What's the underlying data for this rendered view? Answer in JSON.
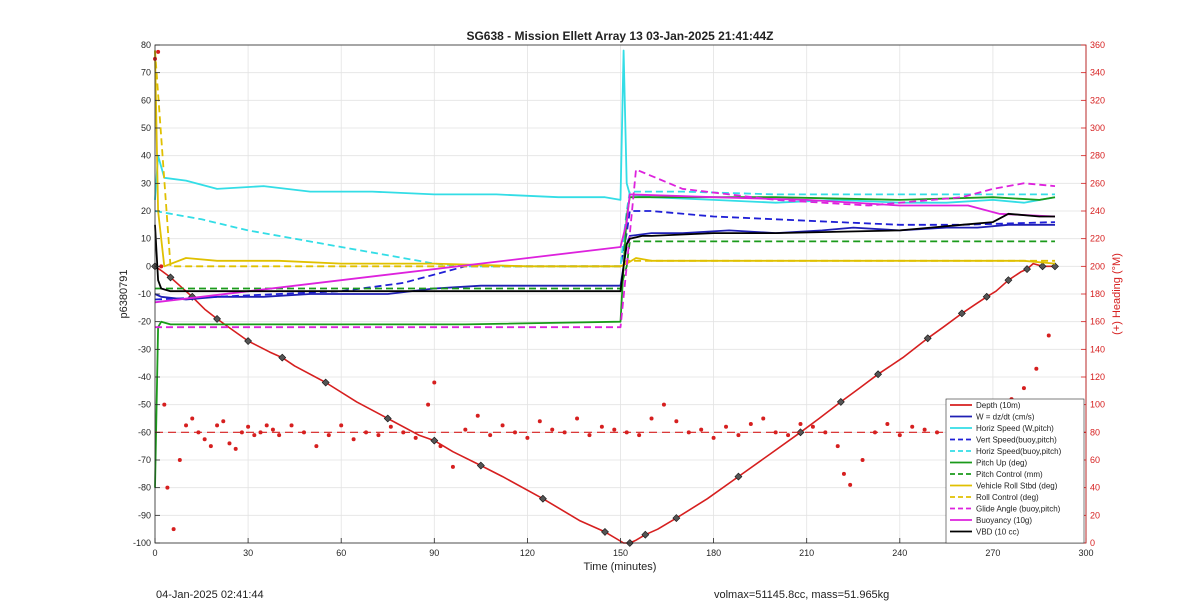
{
  "chart_data": {
    "type": "line",
    "title": "SG638 - Mission Ellett Array 13 03-Jan-2025 21:41:44Z",
    "xlabel": "Time (minutes)",
    "ylabel": "p6380791",
    "y2label": "(+) Heading (°M)",
    "xlim": [
      0,
      300
    ],
    "ylim": [
      -100,
      80
    ],
    "y2lim": [
      0,
      360
    ],
    "xticks": [
      0,
      30,
      60,
      90,
      120,
      150,
      180,
      210,
      240,
      270,
      300
    ],
    "yticks": [
      -100,
      -90,
      -80,
      -70,
      -60,
      -50,
      -40,
      -30,
      -20,
      -10,
      0,
      10,
      20,
      30,
      40,
      50,
      60,
      70,
      80
    ],
    "y2ticks": [
      0,
      20,
      40,
      60,
      80,
      100,
      120,
      140,
      160,
      180,
      200,
      220,
      240,
      260,
      280,
      300,
      320,
      340,
      360
    ],
    "grid": true,
    "legend_position": "bottom-right",
    "heading_target": 80,
    "series": [
      {
        "name": "Depth (10m)",
        "color": "#d61f1f",
        "style": "solid-markers",
        "x": [
          0,
          2,
          5,
          8,
          12,
          16,
          20,
          25,
          30,
          37,
          41,
          45,
          55,
          65,
          75,
          85,
          90,
          96,
          105,
          112,
          125,
          137,
          145,
          151,
          153,
          155,
          158,
          162,
          168,
          178,
          188,
          198,
          208,
          214,
          221,
          227,
          233,
          241,
          249,
          254,
          260,
          264,
          268,
          271,
          275,
          279,
          281,
          283,
          286,
          290
        ],
        "y": [
          0,
          -1.5,
          -4,
          -7,
          -11,
          -15.5,
          -19,
          -23,
          -27,
          -31,
          -33,
          -36,
          -42,
          -49,
          -55,
          -61,
          -63,
          -67,
          -72,
          -76,
          -84,
          -92,
          -96,
          -100,
          -100,
          -99,
          -97,
          -95,
          -91,
          -84,
          -76,
          -68,
          -60,
          -55,
          -49,
          -44,
          -39,
          -33,
          -26,
          -22,
          -17,
          -14,
          -11,
          -9,
          -5,
          -2,
          -1,
          1,
          0,
          0
        ]
      },
      {
        "name": "W = dz/dt (cm/s)",
        "color": "#1f1fb4",
        "style": "solid",
        "x": [
          0,
          2,
          10,
          20,
          35,
          50,
          60,
          75,
          90,
          105,
          120,
          135,
          150,
          151,
          152,
          153,
          160,
          170,
          185,
          200,
          215,
          225,
          240,
          255,
          265,
          275,
          290
        ],
        "y": [
          -10,
          -11,
          -12,
          -11,
          -11,
          -10,
          -10,
          -10,
          -8,
          -7,
          -7,
          -7,
          -7,
          0,
          8,
          11,
          12,
          12,
          13,
          12,
          13,
          14,
          13,
          14,
          14,
          15,
          15
        ]
      },
      {
        "name": "Horiz Speed (W,pitch)",
        "color": "#33dde6",
        "style": "solid",
        "x": [
          0,
          1,
          3,
          10,
          20,
          35,
          50,
          70,
          90,
          110,
          130,
          145,
          150,
          151,
          152,
          153,
          160,
          180,
          200,
          220,
          240,
          255,
          270,
          280,
          290
        ],
        "y": [
          24,
          40,
          32,
          31,
          28,
          29,
          27,
          27,
          26,
          26,
          25,
          25,
          24,
          78,
          30,
          26,
          25,
          24,
          23,
          24,
          23,
          23,
          24,
          23,
          25
        ]
      },
      {
        "name": "Vert Speed(buoy,pitch)",
        "color": "#1f1fd6",
        "style": "dashed",
        "x": [
          0,
          20,
          40,
          60,
          80,
          100,
          130,
          150,
          152,
          153,
          160,
          180,
          200,
          220,
          240,
          260,
          290
        ],
        "y": [
          -12,
          -11,
          -10,
          -9,
          -6,
          0,
          0,
          0,
          12,
          20,
          20,
          18,
          17,
          16,
          15,
          15,
          16
        ]
      },
      {
        "name": "Horiz Speed(buoy,pitch)",
        "color": "#33dde6",
        "style": "dashed",
        "x": [
          0,
          15,
          30,
          45,
          60,
          75,
          90,
          100,
          150,
          152,
          153,
          170,
          200,
          230,
          260,
          290
        ],
        "y": [
          20,
          17,
          13,
          10,
          7,
          4,
          1,
          0,
          0,
          20,
          27,
          27,
          26,
          26,
          26,
          26
        ]
      },
      {
        "name": "Pitch Up (deg)",
        "color": "#1a9a1a",
        "style": "solid",
        "x": [
          0,
          1,
          2,
          5,
          50,
          100,
          150,
          151,
          152,
          153,
          160,
          200,
          240,
          270,
          285,
          290
        ],
        "y": [
          -80,
          -22,
          -20,
          -21,
          -21,
          -21,
          -20,
          0,
          18,
          25,
          25,
          25,
          24,
          25,
          24,
          25
        ]
      },
      {
        "name": "Pitch Control (mm)",
        "color": "#1a9a1a",
        "style": "dashed",
        "x": [
          0,
          3,
          150,
          152,
          153,
          290
        ],
        "y": [
          -8,
          -8,
          -8,
          0,
          9,
          9
        ]
      },
      {
        "name": "Vehicle Roll Stbd (deg)",
        "color": "#e0c000",
        "style": "solid",
        "x": [
          0,
          1,
          3,
          10,
          20,
          40,
          60,
          90,
          120,
          150,
          152,
          155,
          160,
          180,
          200,
          230,
          260,
          280,
          290
        ],
        "y": [
          78,
          20,
          0,
          3,
          2,
          2,
          1,
          1,
          0,
          0,
          1,
          3,
          2,
          2,
          2,
          2,
          2,
          2,
          1
        ]
      },
      {
        "name": "Roll Control (deg)",
        "color": "#e0c000",
        "style": "dashed",
        "x": [
          0,
          5,
          50,
          100,
          150,
          152,
          155,
          200,
          250,
          290
        ],
        "y": [
          78,
          0,
          0,
          0,
          0,
          2,
          2,
          2,
          2,
          2
        ]
      },
      {
        "name": "Glide Angle (buoy,pitch)",
        "color": "#dd22dd",
        "style": "dashed",
        "x": [
          0,
          5,
          30,
          60,
          90,
          120,
          150,
          152,
          155,
          170,
          200,
          230,
          260,
          270,
          280,
          290
        ],
        "y": [
          -22,
          -22,
          -22,
          -22,
          -22,
          -22,
          -22,
          0,
          35,
          28,
          24,
          22,
          25,
          28,
          30,
          29
        ]
      },
      {
        "name": "Buoyancy (10g)",
        "color": "#dd22dd",
        "style": "solid",
        "x": [
          0,
          150,
          152,
          153,
          180,
          210,
          240,
          262,
          272,
          290
        ],
        "y": [
          -13,
          7,
          16,
          26,
          25,
          24,
          22,
          22,
          19,
          18
        ]
      },
      {
        "name": "VBD (10 cc)",
        "color": "#000000",
        "style": "solid",
        "x": [
          0,
          1,
          2,
          5,
          150,
          151,
          152,
          153,
          157,
          160,
          180,
          200,
          240,
          250,
          260,
          270,
          275,
          285,
          290
        ],
        "y": [
          15,
          -5,
          -8,
          -9,
          -9,
          0,
          8,
          10,
          11,
          11,
          12,
          12,
          13,
          14,
          15,
          16,
          19,
          18,
          18
        ]
      }
    ],
    "heading_points": {
      "name": "Heading",
      "color": "#d61f1f",
      "x": [
        0,
        1,
        2,
        3,
        4,
        6,
        8,
        10,
        12,
        14,
        16,
        18,
        20,
        22,
        24,
        26,
        28,
        30,
        32,
        34,
        36,
        38,
        40,
        44,
        48,
        52,
        56,
        60,
        64,
        68,
        72,
        76,
        80,
        84,
        88,
        90,
        92,
        96,
        100,
        104,
        108,
        112,
        116,
        120,
        124,
        128,
        132,
        136,
        140,
        144,
        148,
        152,
        156,
        160,
        164,
        168,
        172,
        176,
        180,
        184,
        188,
        192,
        196,
        200,
        204,
        208,
        212,
        216,
        220,
        222,
        224,
        228,
        232,
        236,
        240,
        244,
        248,
        252,
        256,
        260,
        264,
        268,
        272,
        276,
        280,
        284,
        288
      ],
      "y": [
        350,
        355,
        200,
        100,
        40,
        10,
        60,
        85,
        90,
        80,
        75,
        70,
        85,
        88,
        72,
        68,
        80,
        84,
        78,
        80,
        85,
        82,
        78,
        85,
        80,
        70,
        78,
        85,
        75,
        80,
        78,
        84,
        80,
        76,
        100,
        116,
        70,
        55,
        82,
        92,
        78,
        85,
        80,
        76,
        88,
        82,
        80,
        90,
        78,
        84,
        82,
        80,
        78,
        90,
        100,
        88,
        80,
        82,
        76,
        84,
        78,
        86,
        90,
        80,
        78,
        86,
        84,
        80,
        70,
        50,
        42,
        60,
        80,
        86,
        78,
        84,
        82,
        80,
        92,
        84,
        88,
        76,
        84,
        104,
        112,
        126,
        150
      ]
    }
  },
  "footer": {
    "left_text": "04-Jan-2025 02:41:44",
    "right_text": "volmax=51145.8cc, mass=51.965kg"
  }
}
